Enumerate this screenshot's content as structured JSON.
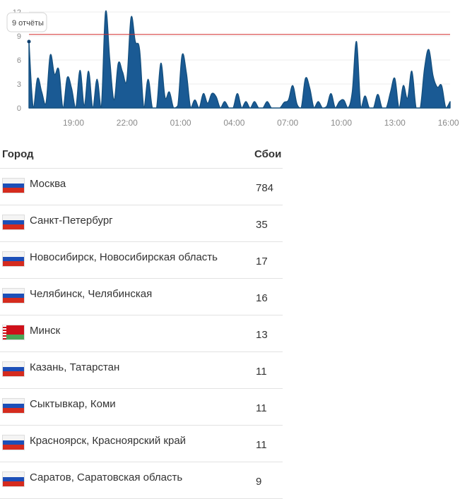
{
  "chart_data": {
    "type": "area",
    "ylim": [
      0,
      12
    ],
    "yticks": [
      "0",
      "3",
      "6",
      "9",
      "12"
    ],
    "xticks": [
      "19:00",
      "22:00",
      "01:00",
      "04:00",
      "07:00",
      "10:00",
      "13:00",
      "16:00"
    ],
    "threshold": 9.2,
    "tooltip": "9 отчёты",
    "highlight_value": 8.3,
    "series_color": "#1a5a94",
    "threshold_color": "#d32f2f",
    "values": [
      8.3,
      0,
      3.7,
      2,
      0.6,
      6.6,
      4.2,
      4.8,
      0,
      3.8,
      2.5,
      0,
      4.7,
      0.3,
      4.6,
      0,
      3.6,
      0,
      12,
      6,
      1,
      5.6,
      4.5,
      3.5,
      11.3,
      8.3,
      7.3,
      0,
      3.6,
      0,
      0,
      5.6,
      1.3,
      2,
      0,
      0.3,
      6.6,
      4.4,
      0,
      1,
      0,
      1.8,
      0.6,
      1.8,
      1.4,
      0,
      0.8,
      0,
      0,
      1.8,
      0,
      0.8,
      0,
      0.8,
      0,
      0,
      0.8,
      0,
      0,
      0,
      0.7,
      1,
      2.8,
      0.5,
      0,
      3.7,
      2.5,
      0,
      0.8,
      0,
      0.2,
      1.8,
      0,
      0.8,
      1,
      0,
      2,
      8.3,
      0,
      1.5,
      0,
      0,
      1.7,
      0,
      0,
      2,
      3.7,
      0,
      2.8,
      1.2,
      4.6,
      0,
      0,
      5,
      7.3,
      4,
      2.6,
      2.8,
      0,
      0.8
    ]
  },
  "table": {
    "headers": {
      "city": "Город",
      "count": "Сбои"
    },
    "rows": [
      {
        "flag": "ru",
        "city": "Москва",
        "count": "784"
      },
      {
        "flag": "ru",
        "city": "Санкт-Петербург",
        "count": "35"
      },
      {
        "flag": "ru",
        "city": "Новосибирск, Новосибирская область",
        "count": "17"
      },
      {
        "flag": "ru",
        "city": "Челябинск, Челябинская",
        "count": "16"
      },
      {
        "flag": "by",
        "city": "Минск",
        "count": "13"
      },
      {
        "flag": "ru",
        "city": "Казань, Татарстан",
        "count": "11"
      },
      {
        "flag": "ru",
        "city": "Сыктывкар, Коми",
        "count": "11"
      },
      {
        "flag": "ru",
        "city": "Красноярск, Красноярский край",
        "count": "11"
      },
      {
        "flag": "ru",
        "city": "Саратов, Саратовская область",
        "count": "9"
      }
    ]
  }
}
